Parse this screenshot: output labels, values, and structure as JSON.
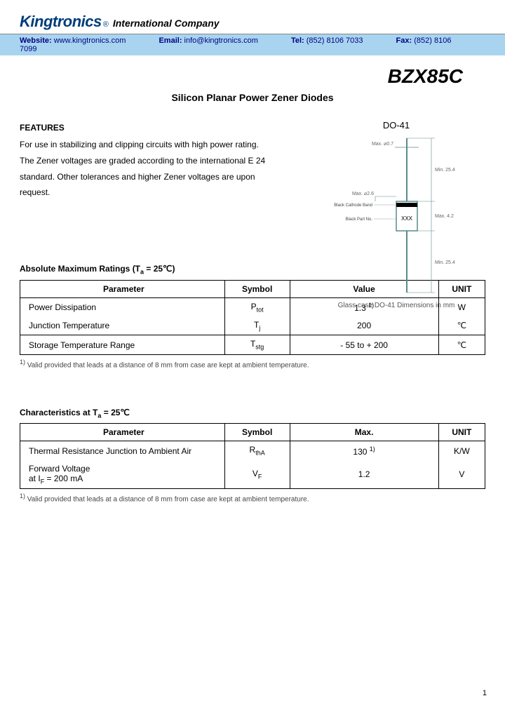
{
  "header": {
    "logo": "Kingtronics",
    "reg": "®",
    "company": "International Company",
    "website_label": "Website:",
    "website": "www.kingtronics.com",
    "email_label": "Email:",
    "email": "info@kingtronics.com",
    "tel_label": "Tel:",
    "tel": "(852) 8106 7033",
    "fax_label": "Fax:",
    "fax": "(852) 8106 7099"
  },
  "part_number": "BZX85C",
  "subtitle": "Silicon Planar Power Zener Diodes",
  "package": {
    "label": "DO-41",
    "caption": "Glass case DO-41 Dimensions in mm",
    "dims": {
      "top_lead": "Max. ⌀0.7",
      "top_len": "Min. 25.4",
      "body_dia": "Max. ⌀2.6",
      "body_len": "Max. 4.2",
      "bot_len": "Min. 25.4",
      "band_label": "Black Cathode Band",
      "mark_label": "Black Part No.",
      "body_mark": "XXX"
    },
    "colors": {
      "line": "#5a8a8a",
      "body_fill": "#ffffff",
      "body_stroke": "#5a8a8a",
      "band": "#000000"
    }
  },
  "features": {
    "heading": "FEATURES",
    "text": "For use in stabilizing and clipping circuits with high power rating.\nThe Zener voltages are graded according to the international E 24 standard. Other tolerances and higher Zener voltages are upon request."
  },
  "table1": {
    "heading_prefix": "Absolute Maximum Ratings (T",
    "heading_sub": "a",
    "heading_suffix": " = 25℃)",
    "columns": [
      "Parameter",
      "Symbol",
      "Value",
      "UNIT"
    ],
    "rows": [
      {
        "param": "Power Dissipation",
        "sym": "P",
        "sym_sub": "tot",
        "val": "1.3",
        "val_sup": "1)",
        "unit": "W"
      },
      {
        "param": "Junction Temperature",
        "sym": "T",
        "sym_sub": "j",
        "val": "200",
        "unit": "℃"
      },
      {
        "param": "Storage Temperature Range",
        "sym": "T",
        "sym_sub": "stg",
        "val": "- 55 to + 200",
        "unit": "℃"
      }
    ],
    "footnote_sup": "1)",
    "footnote": " Valid provided that leads at a distance of 8 mm from case are kept at ambient temperature."
  },
  "table2": {
    "heading_prefix": "Characteristics at T",
    "heading_sub": "a",
    "heading_suffix": " = 25℃",
    "columns": [
      "Parameter",
      "Symbol",
      "Max.",
      "UNIT"
    ],
    "rows": [
      {
        "param": "Thermal Resistance Junction to Ambient Air",
        "sym": "R",
        "sym_sub": "thA",
        "val": "130",
        "val_sup": "1)",
        "unit": "K/W"
      },
      {
        "param1": "Forward Voltage",
        "param2_prefix": "at I",
        "param2_sub": "F",
        "param2_suffix": " = 200 mA",
        "sym": "V",
        "sym_sub": "F",
        "val": "1.2",
        "unit": "V"
      }
    ],
    "footnote_sup": "1)",
    "footnote": " Valid provided that leads at a distance of 8 mm from case are kept at ambient temperature."
  },
  "page_number": "1"
}
